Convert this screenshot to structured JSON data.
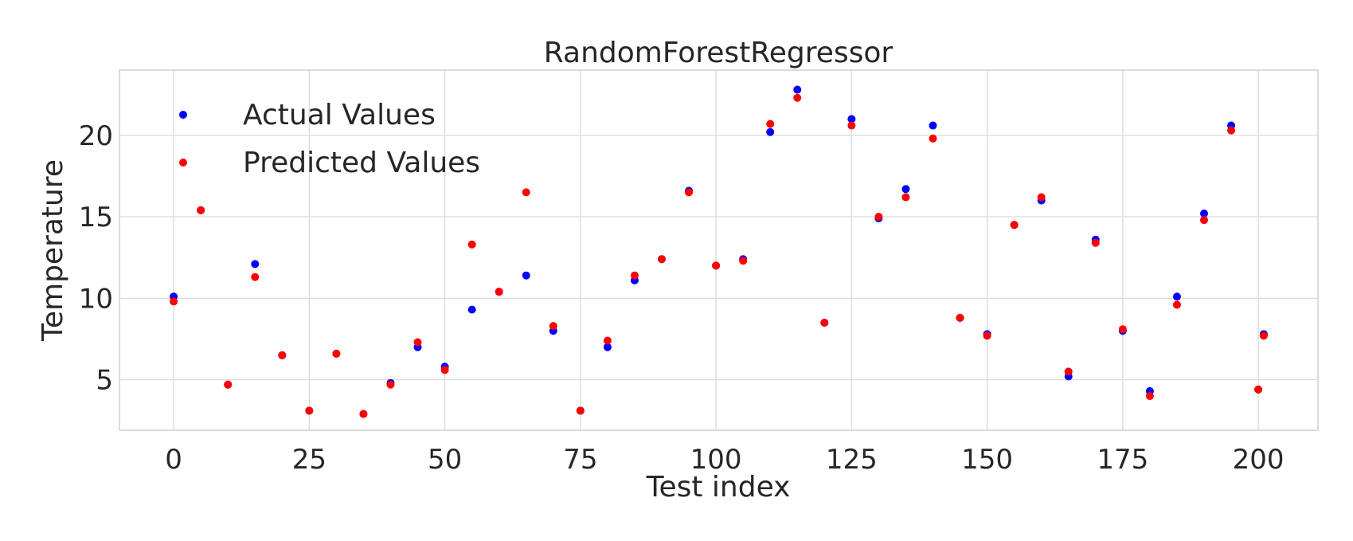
{
  "chart_data": {
    "type": "scatter",
    "title": "RandomForestRegressor",
    "xlabel": "Test index",
    "ylabel": "Temperature",
    "xlim": [
      -10,
      211
    ],
    "ylim": [
      1.9,
      24.0
    ],
    "xticks": [
      0,
      25,
      50,
      75,
      100,
      125,
      150,
      175,
      200
    ],
    "yticks": [
      5,
      10,
      15,
      20
    ],
    "grid": true,
    "legend_position": "top-left",
    "x": [
      0,
      5,
      10,
      15,
      20,
      25,
      30,
      35,
      40,
      45,
      50,
      55,
      60,
      65,
      70,
      75,
      80,
      85,
      90,
      95,
      100,
      105,
      110,
      115,
      120,
      125,
      130,
      135,
      140,
      145,
      150,
      155,
      160,
      165,
      170,
      175,
      180,
      185,
      190,
      195,
      200,
      201
    ],
    "series": [
      {
        "name": "Actual Values",
        "color": "#0000ff",
        "values": [
          10.1,
          15.4,
          4.7,
          12.1,
          6.5,
          3.1,
          6.6,
          2.9,
          4.8,
          7.0,
          5.8,
          9.3,
          10.4,
          11.4,
          8.0,
          3.1,
          7.0,
          11.1,
          12.4,
          16.6,
          12.0,
          12.4,
          20.2,
          22.8,
          8.5,
          21.0,
          14.9,
          16.7,
          20.6,
          8.8,
          7.8,
          14.5,
          16.0,
          5.2,
          13.6,
          8.0,
          4.3,
          10.1,
          15.2,
          20.6,
          4.4,
          7.8
        ]
      },
      {
        "name": "Predicted Values",
        "color": "#ff0000",
        "values": [
          9.8,
          15.4,
          4.7,
          11.3,
          6.5,
          3.1,
          6.6,
          2.9,
          4.7,
          7.3,
          5.6,
          13.3,
          10.4,
          16.5,
          8.3,
          3.1,
          7.4,
          11.4,
          12.4,
          16.5,
          12.0,
          12.3,
          20.7,
          22.3,
          8.5,
          20.6,
          15.0,
          16.2,
          19.8,
          8.8,
          7.7,
          14.5,
          16.2,
          5.5,
          13.4,
          8.1,
          4.0,
          9.6,
          14.8,
          20.3,
          4.4,
          7.7
        ]
      }
    ]
  }
}
